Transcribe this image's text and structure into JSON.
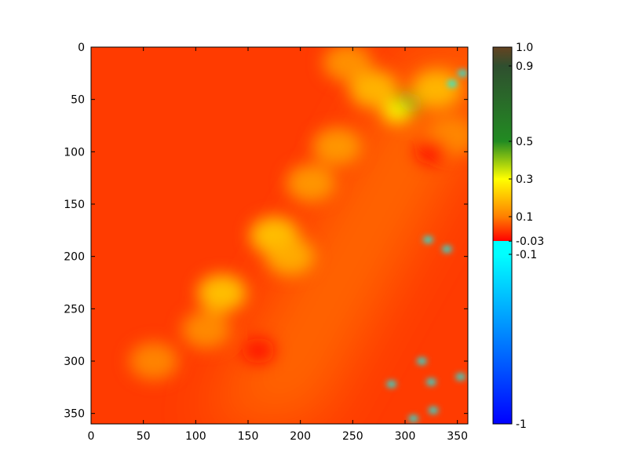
{
  "chart_data": {
    "type": "heatmap",
    "title": "",
    "xlabel": "",
    "ylabel": "",
    "grid": false,
    "xlim": [
      0,
      360
    ],
    "ylim": [
      360,
      0
    ],
    "x_ticks": [
      "0",
      "50",
      "100",
      "150",
      "200",
      "250",
      "300",
      "350"
    ],
    "y_ticks": [
      "0",
      "50",
      "100",
      "150",
      "200",
      "250",
      "300",
      "350"
    ],
    "x_tick_values": [
      0,
      50,
      100,
      150,
      200,
      250,
      300,
      350
    ],
    "y_tick_values": [
      0,
      50,
      100,
      150,
      200,
      250,
      300,
      350
    ],
    "colorbar": {
      "range": [
        -1,
        1
      ],
      "tick_labels": [
        "1.0",
        "0.9",
        "0.5",
        "0.3",
        "0.1",
        "-0.03",
        "-0.1",
        "-1"
      ],
      "tick_values": [
        1.0,
        0.9,
        0.5,
        0.3,
        0.1,
        -0.03,
        -0.1,
        -1.0
      ],
      "stops": [
        {
          "value": -1.0,
          "color": "#0000ff"
        },
        {
          "value": -0.1,
          "color": "#00ffff"
        },
        {
          "value": -0.03,
          "color": "#00ffff"
        },
        {
          "value": -0.0299,
          "color": "#ff0000"
        },
        {
          "value": 0.1,
          "color": "#ff7f00"
        },
        {
          "value": 0.3,
          "color": "#ffff00"
        },
        {
          "value": 0.5,
          "color": "#228b22"
        },
        {
          "value": 0.9,
          "color": "#2f4f2f"
        },
        {
          "value": 1.0,
          "color": "#654321"
        }
      ]
    },
    "background_value": 0.03,
    "regions": [
      {
        "kind": "band",
        "from": [
          160,
          360
        ],
        "to": [
          360,
          0
        ],
        "value": 0.08,
        "description_hidden": true
      },
      {
        "kind": "blob",
        "x": 300,
        "y": 55,
        "value": 0.45
      },
      {
        "kind": "blob",
        "x": 292,
        "y": 62,
        "value": 0.3
      },
      {
        "kind": "blob",
        "x": 270,
        "y": 40,
        "value": 0.2
      },
      {
        "kind": "blob",
        "x": 330,
        "y": 40,
        "value": 0.2
      },
      {
        "kind": "blob",
        "x": 175,
        "y": 180,
        "value": 0.22
      },
      {
        "kind": "blob",
        "x": 190,
        "y": 200,
        "value": 0.18
      },
      {
        "kind": "blob",
        "x": 125,
        "y": 235,
        "value": 0.22
      },
      {
        "kind": "blob",
        "x": 210,
        "y": 130,
        "value": 0.15
      },
      {
        "kind": "blob",
        "x": 235,
        "y": 95,
        "value": 0.15
      },
      {
        "kind": "blob",
        "x": 110,
        "y": 270,
        "value": 0.13
      },
      {
        "kind": "blob",
        "x": 60,
        "y": 300,
        "value": 0.12
      },
      {
        "kind": "blob",
        "x": 245,
        "y": 15,
        "value": 0.14
      },
      {
        "kind": "blob",
        "x": 345,
        "y": 85,
        "value": 0.12
      },
      {
        "kind": "low",
        "x": 325,
        "y": 100,
        "value": -0.01
      },
      {
        "kind": "low",
        "x": 160,
        "y": 290,
        "value": -0.01
      },
      {
        "kind": "neg",
        "x": 355,
        "y": 25,
        "value": -0.1
      },
      {
        "kind": "neg",
        "x": 345,
        "y": 35,
        "value": -0.1
      },
      {
        "kind": "neg",
        "x": 322,
        "y": 184,
        "value": -0.1
      },
      {
        "kind": "neg",
        "x": 340,
        "y": 193,
        "value": -0.1
      },
      {
        "kind": "neg",
        "x": 287,
        "y": 322,
        "value": -0.1
      },
      {
        "kind": "neg",
        "x": 325,
        "y": 320,
        "value": -0.1
      },
      {
        "kind": "neg",
        "x": 353,
        "y": 315,
        "value": -0.1
      },
      {
        "kind": "neg",
        "x": 308,
        "y": 355,
        "value": -0.1
      },
      {
        "kind": "neg",
        "x": 327,
        "y": 347,
        "value": -0.1
      },
      {
        "kind": "neg",
        "x": 316,
        "y": 300,
        "value": -0.1
      }
    ]
  }
}
